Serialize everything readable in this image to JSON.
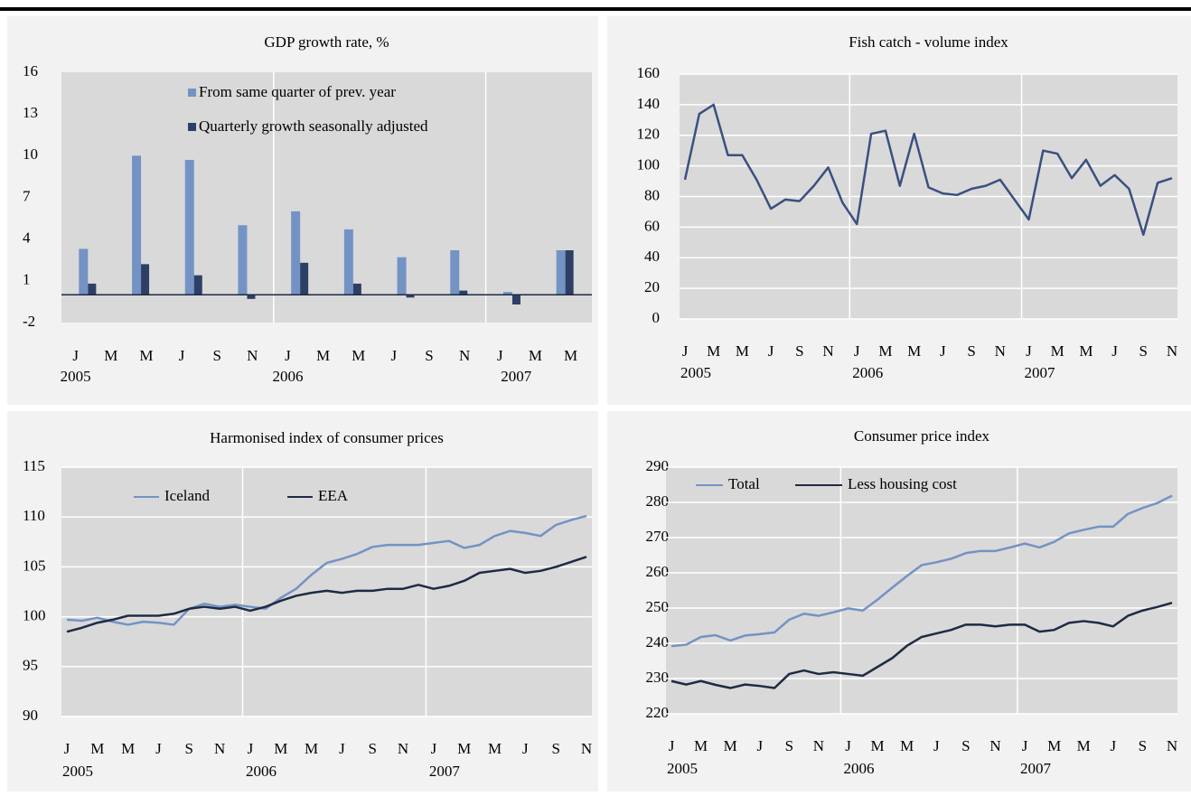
{
  "chart_data": [
    {
      "type": "bar",
      "title": "GDP growth rate, %",
      "x_labels": [
        "J",
        "M",
        "M",
        "J",
        "S",
        "N",
        "J",
        "M",
        "M",
        "J",
        "S",
        "N",
        "J",
        "M",
        "M"
      ],
      "year_labels": [
        "2005",
        "2006",
        "2007"
      ],
      "series": [
        {
          "name": "From same quarter of prev. year",
          "color": "#7393c4",
          "values": [
            3.3,
            10.0,
            9.7,
            5.0,
            6.0,
            4.7,
            2.7,
            3.2,
            0.2,
            3.2
          ]
        },
        {
          "name": "Quarterly growth seasonally adjusted",
          "color": "#2e3f66",
          "values": [
            0.8,
            2.2,
            1.4,
            -0.3,
            2.3,
            0.8,
            -0.2,
            0.3,
            -0.7,
            3.2
          ]
        }
      ],
      "ylim": [
        -2,
        16
      ],
      "yticks": [
        -2,
        1,
        4,
        7,
        10,
        13,
        16
      ],
      "grid": false
    },
    {
      "type": "line",
      "title": "Fish catch - volume index",
      "categories": [
        "J",
        null,
        "M",
        null,
        "M",
        null,
        "J",
        null,
        "S",
        null,
        "N",
        null,
        "J",
        null,
        "M",
        null,
        "M",
        null,
        "J",
        null,
        "S",
        null,
        "N",
        null,
        "J",
        null,
        "M",
        null,
        "M",
        null,
        "J",
        null,
        "S",
        null,
        "N"
      ],
      "year_labels": [
        "2005",
        "2006",
        "2007"
      ],
      "color": "#3a5080",
      "values": [
        91,
        134,
        140,
        107,
        107,
        91,
        72,
        78,
        77,
        87,
        99,
        76,
        62,
        121,
        123,
        87,
        121,
        86,
        82,
        81,
        85,
        87,
        91,
        78,
        65,
        110,
        108,
        92,
        104,
        87,
        94,
        85,
        55,
        89,
        92
      ],
      "ylim": [
        0,
        160
      ],
      "yticks": [
        0,
        20,
        40,
        60,
        80,
        100,
        120,
        140,
        160
      ],
      "grid": true
    },
    {
      "type": "line",
      "title": "Harmonised index of consumer prices",
      "categories": [
        "J",
        null,
        "M",
        null,
        "M",
        null,
        "J",
        null,
        "S",
        null,
        "N",
        null,
        "J",
        null,
        "M",
        null,
        "M",
        null,
        "J",
        null,
        "S",
        null,
        "N",
        null,
        "J",
        null,
        "M",
        null,
        "M",
        null,
        "J",
        null,
        "S",
        null,
        "N"
      ],
      "year_labels": [
        "2005",
        "2006",
        "2007"
      ],
      "series": [
        {
          "name": "Iceland",
          "color": "#7393c4",
          "values": [
            99.7,
            99.6,
            99.9,
            99.5,
            99.2,
            99.5,
            99.4,
            99.2,
            100.8,
            101.3,
            101.0,
            101.2,
            101.0,
            100.8,
            101.9,
            102.8,
            104.2,
            105.4,
            105.8,
            106.3,
            107.0,
            107.2,
            107.2,
            107.2,
            107.4,
            107.6,
            106.9,
            107.2,
            108.1,
            108.6,
            108.4,
            108.1,
            109.2,
            109.7,
            110.1
          ]
        },
        {
          "name": "EEA",
          "color": "#1f2a44",
          "values": [
            98.5,
            98.9,
            99.4,
            99.7,
            100.1,
            100.1,
            100.1,
            100.3,
            100.8,
            101.0,
            100.8,
            101.0,
            100.6,
            101.0,
            101.6,
            102.1,
            102.4,
            102.6,
            102.4,
            102.6,
            102.6,
            102.8,
            102.8,
            103.2,
            102.8,
            103.1,
            103.6,
            104.4,
            104.6,
            104.8,
            104.4,
            104.6,
            105.0,
            105.5,
            106.0
          ]
        }
      ],
      "ylim": [
        90,
        115
      ],
      "yticks": [
        90,
        95,
        100,
        105,
        110,
        115
      ],
      "grid": true
    },
    {
      "type": "line",
      "title": "Consumer price index",
      "categories": [
        "J",
        null,
        "M",
        null,
        "M",
        null,
        "J",
        null,
        "S",
        null,
        "N",
        null,
        "J",
        null,
        "M",
        null,
        "M",
        null,
        "J",
        null,
        "S",
        null,
        "N",
        null,
        "J",
        null,
        "M",
        null,
        "M",
        null,
        "J",
        null,
        "S",
        null,
        "N"
      ],
      "year_labels": [
        "2005",
        "2006",
        "2007"
      ],
      "series": [
        {
          "name": "Total",
          "color": "#7393c4",
          "values": [
            239.2,
            239.6,
            241.8,
            242.3,
            240.8,
            242.2,
            242.6,
            243.1,
            246.7,
            248.4,
            247.8,
            248.8,
            249.9,
            249.3,
            252.4,
            255.8,
            259.1,
            262.2,
            263.0,
            264.0,
            265.6,
            266.2,
            266.2,
            267.2,
            268.3,
            267.2,
            268.8,
            271.2,
            272.2,
            273.1,
            273.1,
            276.7,
            278.4,
            279.8,
            281.9
          ]
        },
        {
          "name": "Less housing cost",
          "color": "#1f2a44",
          "values": [
            229.3,
            228.3,
            229.3,
            228.2,
            227.3,
            228.3,
            227.9,
            227.3,
            231.3,
            232.3,
            231.3,
            231.8,
            231.3,
            230.8,
            233.3,
            235.8,
            239.3,
            241.8,
            242.8,
            243.8,
            245.3,
            245.3,
            244.8,
            245.3,
            245.3,
            243.3,
            243.8,
            245.8,
            246.3,
            245.8,
            244.8,
            247.8,
            249.3,
            250.3,
            251.5
          ]
        }
      ],
      "ylim": [
        220,
        290
      ],
      "yticks": [
        220,
        230,
        240,
        250,
        260,
        270,
        280,
        290
      ],
      "grid": true
    }
  ]
}
